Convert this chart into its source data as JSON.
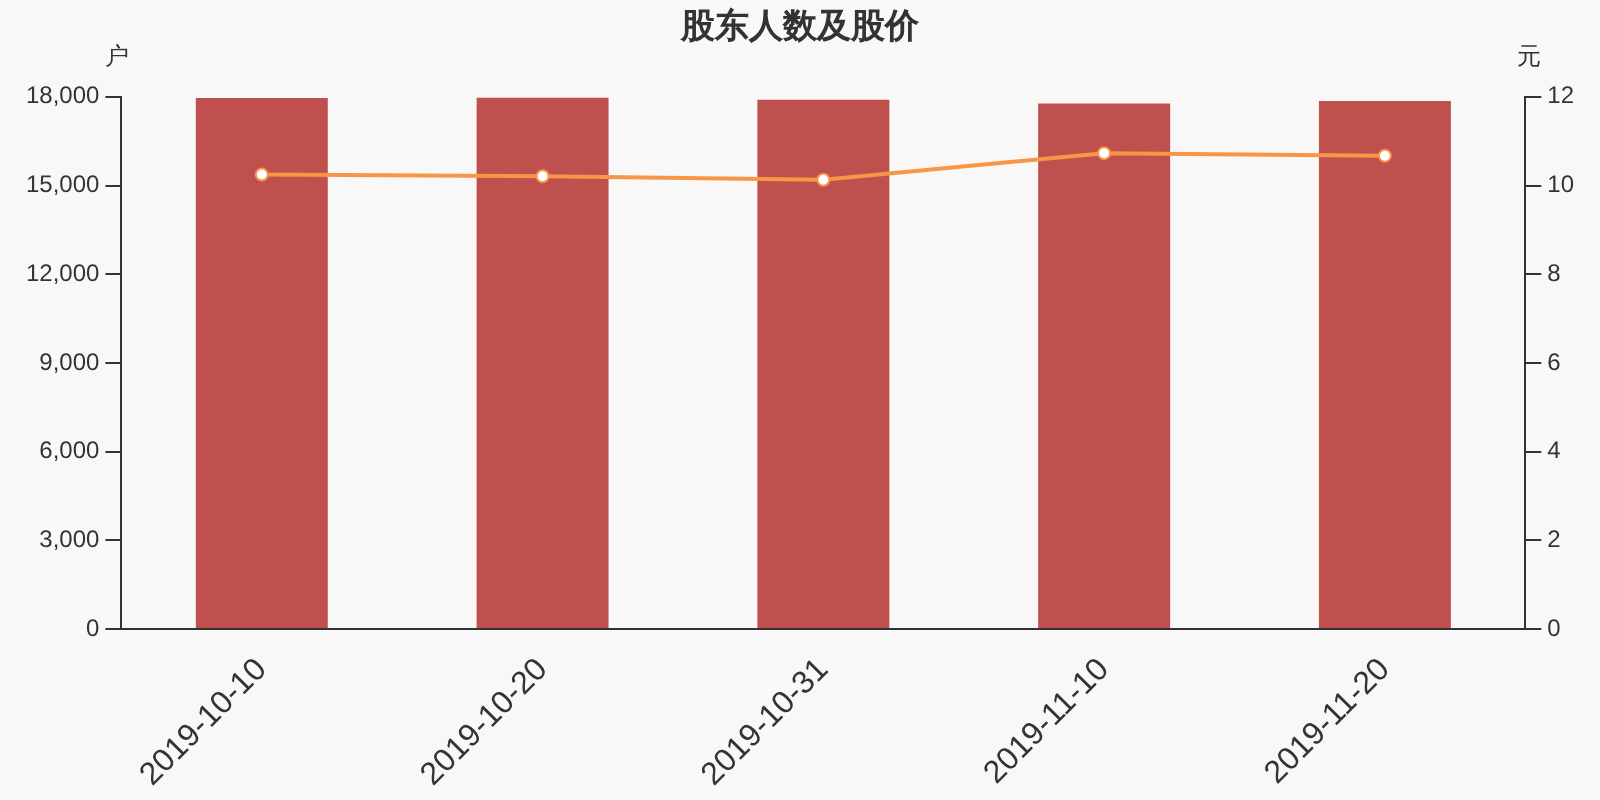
{
  "chart_data": {
    "type": "bar",
    "title": "股东人数及股价",
    "ylabel": "户",
    "y2label": "元",
    "categories": [
      "2019-10-10",
      "2019-10-20",
      "2019-10-31",
      "2019-11-10",
      "2019-11-20"
    ],
    "series": [
      {
        "color": "#c0504d",
        "values": [
          17960,
          17970,
          17900,
          17770,
          17860
        ]
      },
      {
        "type": "line",
        "axis": "y2",
        "color": "#f79646",
        "marker": "circle",
        "values": [
          10.25,
          10.21,
          10.13,
          10.73,
          10.67
        ]
      }
    ],
    "ylim": [
      0,
      18000
    ],
    "yticks": [
      0,
      {
        "value": 3000,
        "label": "3,000"
      },
      {
        "value": 6000,
        "label": "6,000"
      },
      {
        "value": 9000,
        "label": "9,000"
      },
      {
        "value": 12000,
        "label": "12,000"
      },
      {
        "value": 15000,
        "label": "15,000"
      },
      {
        "value": 18000,
        "label": "18,000"
      }
    ],
    "y2lim": [
      0,
      12
    ],
    "y2ticks": [
      0,
      2,
      4,
      6,
      8,
      10,
      12
    ],
    "grid": false,
    "legend": false
  }
}
